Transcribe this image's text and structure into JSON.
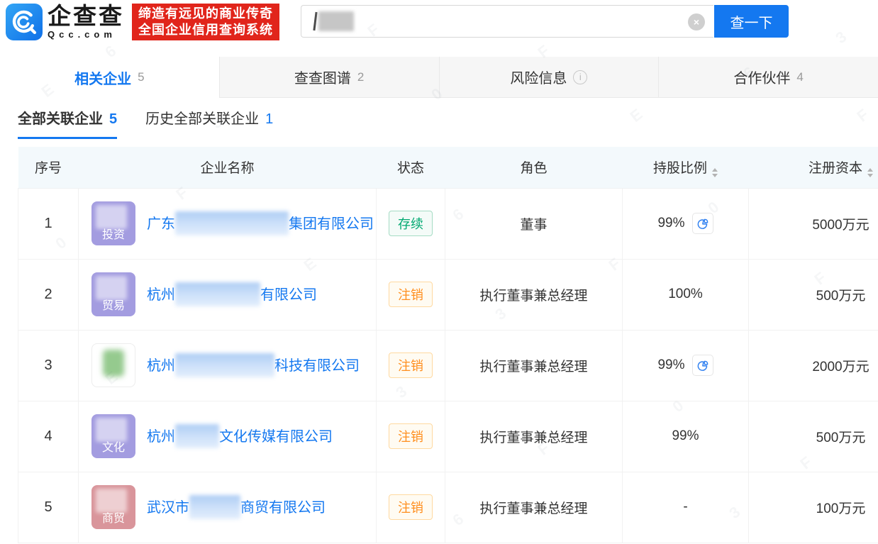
{
  "header": {
    "logo": {
      "brand": "企查查",
      "domain": "Qcc.com"
    },
    "slogan": {
      "line1": "缔造有远见的商业传奇",
      "line2": "全国企业信用查询系统"
    },
    "search": {
      "query_redacted": true,
      "clear_icon": "×",
      "button_label": "查一下"
    }
  },
  "tabs": [
    {
      "id": "related-companies",
      "label": "相关企业",
      "count": "5",
      "active": true
    },
    {
      "id": "qcc-graph",
      "label": "查查图谱",
      "count": "2",
      "active": false
    },
    {
      "id": "risk-info",
      "label": "风险信息",
      "count": null,
      "info_icon": true,
      "active": false
    },
    {
      "id": "partners",
      "label": "合作伙伴",
      "count": "4",
      "active": false
    }
  ],
  "subtabs": [
    {
      "id": "all-related",
      "label": "全部关联企业",
      "count": "5",
      "active": true
    },
    {
      "id": "history-related",
      "label": "历史全部关联企业",
      "count": "1",
      "active": false
    }
  ],
  "table": {
    "columns": [
      {
        "id": "serial",
        "label": "序号",
        "sortable": false
      },
      {
        "id": "company-name",
        "label": "企业名称",
        "sortable": false
      },
      {
        "id": "status",
        "label": "状态",
        "sortable": false
      },
      {
        "id": "role",
        "label": "角色",
        "sortable": false
      },
      {
        "id": "share-ratio",
        "label": "持股比例",
        "sortable": true
      },
      {
        "id": "registered-capital",
        "label": "注册资本",
        "sortable": true
      }
    ],
    "rows": [
      {
        "index": "1",
        "logo": {
          "type": "purple",
          "label": "投资"
        },
        "name_prefix": "广东",
        "name_blur_width": 160,
        "name_suffix": "集团有限公司",
        "status": "存续",
        "status_type": "active",
        "role": "董事",
        "share": "99%",
        "share_pie": true,
        "capital": "5000万元"
      },
      {
        "index": "2",
        "logo": {
          "type": "purple",
          "label": "贸易"
        },
        "name_prefix": "杭州",
        "name_blur_width": 120,
        "name_suffix": "有限公司",
        "status": "注销",
        "status_type": "cancelled",
        "role": "执行董事兼总经理",
        "share": "100%",
        "share_pie": false,
        "capital": "500万元"
      },
      {
        "index": "3",
        "logo": {
          "type": "image",
          "label": ""
        },
        "name_prefix": "杭州",
        "name_blur_width": 140,
        "name_suffix": "科技有限公司",
        "status": "注销",
        "status_type": "cancelled",
        "role": "执行董事兼总经理",
        "share": "99%",
        "share_pie": true,
        "capital": "2000万元"
      },
      {
        "index": "4",
        "logo": {
          "type": "purple",
          "label": "文化"
        },
        "name_prefix": "杭州",
        "name_blur_width": 62,
        "name_suffix": "文化传媒有限公司",
        "status": "注销",
        "status_type": "cancelled",
        "role": "执行董事兼总经理",
        "share": "99%",
        "share_pie": false,
        "capital": "500万元"
      },
      {
        "index": "5",
        "logo": {
          "type": "pink",
          "label": "商贸"
        },
        "name_prefix": "武汉市",
        "name_blur_width": 72,
        "name_suffix": "商贸有限公司",
        "status": "注销",
        "status_type": "cancelled",
        "role": "执行董事兼总经理",
        "share": "-",
        "share_pie": false,
        "capital": "100万元"
      }
    ]
  },
  "watermark": {
    "text": "E63F0F"
  },
  "colors": {
    "accent": "#1478f0",
    "link": "#1478f0",
    "slogan_bg": "#e1251b",
    "header_bg": "#f3f9fc",
    "status_active": "#00a870",
    "status_active_border": "#a5dcc4",
    "status_active_bg": "#f4fbf8",
    "status_cancelled": "#ff8f1f",
    "status_cancelled_border": "#ffd9a0",
    "status_cancelled_bg": "#fffbf2",
    "logo_purple": "#a39ce0",
    "logo_pink": "#d9959b",
    "logo_green": "#95ca8e"
  }
}
